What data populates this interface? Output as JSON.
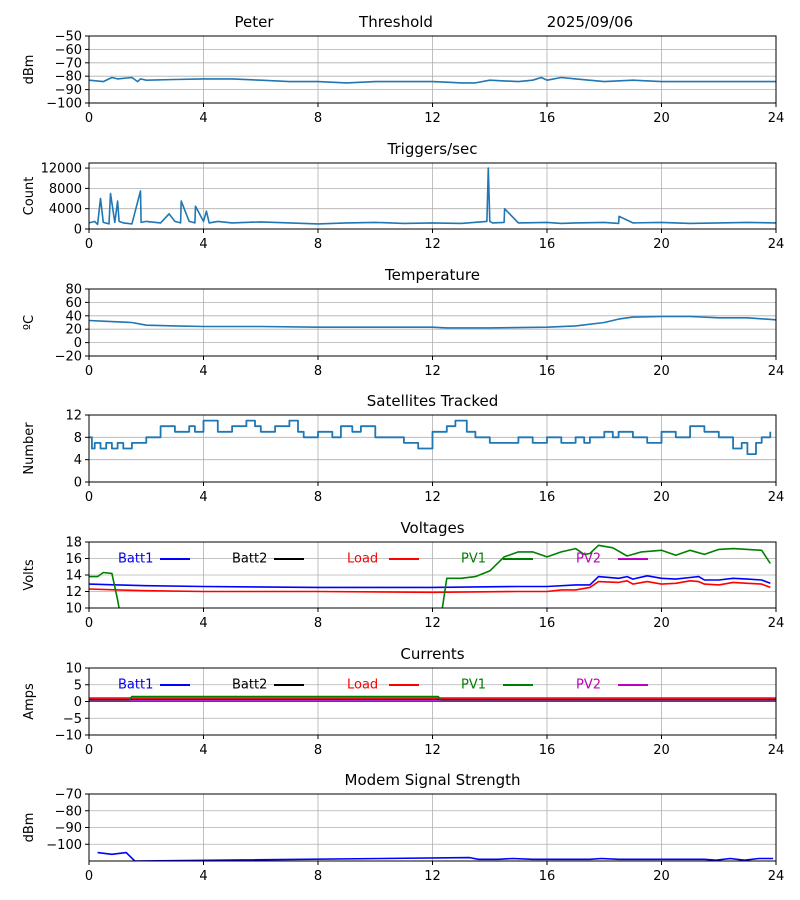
{
  "header": {
    "station": "Peter",
    "mode": "Threshold",
    "date": "2025/09/06"
  },
  "chart_data": [
    {
      "type": "line",
      "title": "",
      "xlabel": "",
      "ylabel": "dBm",
      "xlim": [
        0,
        24
      ],
      "ylim": [
        -100,
        -50
      ],
      "xticks": [
        0,
        4,
        8,
        12,
        16,
        20,
        24
      ],
      "yticks": [
        -100,
        -90,
        -80,
        -70,
        -60,
        -50
      ],
      "grid": true,
      "series": [
        {
          "color": "#1f77b4",
          "x": [
            0,
            0.5,
            0.8,
            1.0,
            1.5,
            1.7,
            1.8,
            2,
            3,
            4,
            5,
            6,
            7,
            8,
            9,
            10,
            11,
            12,
            12.5,
            13,
            13.5,
            14,
            15,
            15.5,
            15.8,
            16,
            16.5,
            17,
            18,
            19,
            20,
            21,
            22,
            23,
            24
          ],
          "values": [
            -83,
            -84,
            -81,
            -82,
            -81,
            -84,
            -82,
            -83,
            -82.5,
            -82,
            -82,
            -83,
            -84,
            -84,
            -85,
            -84,
            -84,
            -84,
            -84.5,
            -85,
            -85,
            -83,
            -84,
            -83,
            -81,
            -83,
            -81,
            -82,
            -84,
            -83,
            -84,
            -84,
            -84,
            -84,
            -84
          ]
        }
      ]
    },
    {
      "type": "line",
      "title": "Triggers/sec",
      "xlabel": "",
      "ylabel": "Count",
      "xlim": [
        0,
        24
      ],
      "ylim": [
        0,
        13000
      ],
      "xticks": [
        0,
        4,
        8,
        12,
        16,
        20,
        24
      ],
      "yticks": [
        0,
        4000,
        8000,
        12000
      ],
      "grid": true,
      "series": [
        {
          "color": "#1f77b4",
          "x": [
            0,
            0.2,
            0.3,
            0.4,
            0.5,
            0.7,
            0.75,
            0.9,
            1.0,
            1.05,
            1.2,
            1.5,
            1.8,
            1.82,
            2,
            2.5,
            2.8,
            3.0,
            3.2,
            3.22,
            3.5,
            3.7,
            3.72,
            4,
            4.1,
            4.2,
            4.5,
            5,
            6,
            7,
            8,
            9,
            10,
            11,
            12,
            13,
            13.9,
            13.95,
            14.0,
            14.1,
            14.5,
            14.52,
            15,
            16,
            16.5,
            17,
            18,
            18.5,
            18.52,
            19,
            20,
            21,
            22,
            23,
            24
          ],
          "values": [
            1200,
            1500,
            900,
            6000,
            1300,
            1000,
            7000,
            1300,
            5500,
            1500,
            1200,
            1000,
            7500,
            1300,
            1500,
            1200,
            3000,
            1500,
            1200,
            5500,
            1500,
            1200,
            4500,
            1500,
            3500,
            1200,
            1500,
            1200,
            1400,
            1200,
            1000,
            1200,
            1300,
            1100,
            1200,
            1100,
            1500,
            12000,
            1500,
            1200,
            1300,
            4000,
            1200,
            1300,
            1100,
            1200,
            1300,
            1100,
            2500,
            1200,
            1300,
            1100,
            1200,
            1300,
            1200
          ]
        }
      ]
    },
    {
      "type": "line",
      "title": "Temperature",
      "xlabel": "",
      "ylabel": "ºC",
      "xlim": [
        0,
        24
      ],
      "ylim": [
        -20,
        80
      ],
      "xticks": [
        0,
        4,
        8,
        12,
        16,
        20,
        24
      ],
      "yticks": [
        -20,
        0,
        20,
        40,
        60,
        80
      ],
      "grid": true,
      "series": [
        {
          "color": "#1f77b4",
          "x": [
            0,
            0.5,
            1.5,
            2,
            3,
            4,
            6,
            8,
            10,
            12,
            12.5,
            14,
            16,
            17,
            18,
            18.5,
            19,
            20,
            21,
            22,
            23,
            24
          ],
          "values": [
            33,
            32,
            30,
            26,
            25,
            24,
            24,
            23,
            23,
            23,
            22,
            22,
            23,
            25,
            30,
            35,
            38,
            39,
            39,
            37,
            37,
            34
          ]
        }
      ]
    },
    {
      "type": "line",
      "title": "Satellites Tracked",
      "xlabel": "",
      "ylabel": "Number",
      "xlim": [
        0,
        24
      ],
      "ylim": [
        0,
        12
      ],
      "xticks": [
        0,
        4,
        8,
        12,
        16,
        20,
        24
      ],
      "yticks": [
        0,
        4,
        8,
        12
      ],
      "grid": true,
      "step": true,
      "series": [
        {
          "color": "#1f77b4",
          "x": [
            0,
            0.1,
            0.2,
            0.4,
            0.6,
            0.8,
            1.0,
            1.2,
            1.5,
            2.0,
            2.5,
            3.0,
            3.5,
            3.7,
            4.0,
            4.5,
            5.0,
            5.5,
            5.8,
            6.0,
            6.5,
            7.0,
            7.3,
            7.5,
            8.0,
            8.5,
            8.8,
            9.2,
            9.5,
            10.0,
            11.0,
            11.5,
            12.0,
            12.5,
            12.8,
            13.2,
            13.5,
            14.0,
            15.0,
            15.5,
            16.0,
            16.5,
            17.0,
            17.3,
            17.5,
            18.0,
            18.3,
            18.5,
            19.0,
            19.5,
            20.0,
            20.5,
            21.0,
            21.5,
            22.0,
            22.5,
            22.8,
            23.0,
            23.3,
            23.5,
            23.8
          ],
          "values": [
            8,
            6,
            7,
            6,
            7,
            6,
            7,
            6,
            7,
            8,
            10,
            9,
            10,
            9,
            11,
            9,
            10,
            11,
            10,
            9,
            10,
            11,
            9,
            8,
            9,
            8,
            10,
            9,
            10,
            8,
            7,
            6,
            9,
            10,
            11,
            9,
            8,
            7,
            8,
            7,
            8,
            7,
            8,
            7,
            8,
            9,
            8,
            9,
            8,
            7,
            9,
            8,
            10,
            9,
            8,
            6,
            7,
            5,
            7,
            8,
            9
          ]
        }
      ]
    },
    {
      "type": "line",
      "title": "Voltages",
      "xlabel": "",
      "ylabel": "Volts",
      "xlim": [
        0,
        24
      ],
      "ylim": [
        10,
        18
      ],
      "xticks": [
        0,
        4,
        8,
        12,
        16,
        20,
        24
      ],
      "yticks": [
        10,
        12,
        14,
        16,
        18
      ],
      "grid": true,
      "legend": "top, inside, single row",
      "series": [
        {
          "name": "Batt1",
          "color": "#0000ff",
          "x": [
            0,
            1,
            2,
            4,
            8,
            12,
            15,
            16,
            17,
            17.5,
            17.8,
            18.5,
            18.8,
            19,
            19.5,
            20,
            20.5,
            21,
            21.3,
            21.5,
            22,
            22.5,
            23,
            23.5,
            23.8
          ],
          "values": [
            12.9,
            12.8,
            12.7,
            12.6,
            12.5,
            12.5,
            12.6,
            12.6,
            12.8,
            12.8,
            13.8,
            13.6,
            13.8,
            13.5,
            13.9,
            13.6,
            13.5,
            13.7,
            13.8,
            13.4,
            13.4,
            13.6,
            13.5,
            13.4,
            13.0
          ]
        },
        {
          "name": "Batt2",
          "color": "#000000",
          "x": [],
          "values": []
        },
        {
          "name": "Load",
          "color": "#ff0000",
          "x": [
            0,
            1,
            2,
            4,
            8,
            12,
            15,
            16,
            16.5,
            17,
            17.5,
            17.8,
            18.5,
            18.8,
            19,
            19.5,
            20,
            20.5,
            21,
            21.3,
            21.5,
            22,
            22.5,
            23,
            23.5,
            23.8
          ],
          "values": [
            12.3,
            12.2,
            12.1,
            12.0,
            12.0,
            11.9,
            12.0,
            12.0,
            12.2,
            12.2,
            12.5,
            13.2,
            13.1,
            13.3,
            12.9,
            13.2,
            12.9,
            13.0,
            13.3,
            13.2,
            12.9,
            12.8,
            13.1,
            13.0,
            12.9,
            12.5
          ]
        },
        {
          "name": "PV1",
          "color": "#008000",
          "x": [
            0,
            0.3,
            0.5,
            0.8,
            1.0,
            1.1,
            12.3,
            12.5,
            13.0,
            13.5,
            14.0,
            14.5,
            15.0,
            15.5,
            16.0,
            16.5,
            17.0,
            17.3,
            17.5,
            17.8,
            18.3,
            18.8,
            19.3,
            20.0,
            20.5,
            21.0,
            21.5,
            22.0,
            22.5,
            23.0,
            23.5,
            23.8
          ],
          "values": [
            13.8,
            13.8,
            14.3,
            14.2,
            11.0,
            9.0,
            9.0,
            13.6,
            13.6,
            13.8,
            14.5,
            16.2,
            16.8,
            16.8,
            16.2,
            16.8,
            17.2,
            16.5,
            16.6,
            17.6,
            17.3,
            16.3,
            16.8,
            17.0,
            16.4,
            17.0,
            16.5,
            17.1,
            17.2,
            17.1,
            17.0,
            15.4
          ]
        },
        {
          "name": "PV2",
          "color": "#bf00bf",
          "x": [],
          "values": []
        }
      ]
    },
    {
      "type": "line",
      "title": "Currents",
      "xlabel": "",
      "ylabel": "Amps",
      "xlim": [
        0,
        24
      ],
      "ylim": [
        -10,
        10
      ],
      "xticks": [
        0,
        4,
        8,
        12,
        16,
        20,
        24
      ],
      "yticks": [
        -10,
        -5,
        0,
        5,
        10
      ],
      "grid": true,
      "legend": "top, inside, single row",
      "series": [
        {
          "name": "Batt1",
          "color": "#0000ff",
          "x": [
            0,
            24
          ],
          "values": [
            0.6,
            0.6
          ]
        },
        {
          "name": "Batt2",
          "color": "#000000",
          "x": [],
          "values": []
        },
        {
          "name": "Load",
          "color": "#ff0000",
          "x": [
            0,
            4,
            8,
            12,
            16,
            20,
            24
          ],
          "values": [
            1.0,
            1.0,
            1.0,
            1.0,
            1.0,
            1.0,
            1.0
          ]
        },
        {
          "name": "PV1",
          "color": "#008000",
          "x": [
            0,
            1.4,
            1.5,
            4,
            8,
            12.2,
            12.3,
            24
          ],
          "values": [
            0.3,
            0.3,
            1.5,
            1.5,
            1.5,
            1.5,
            0.3,
            0.3
          ]
        },
        {
          "name": "PV2",
          "color": "#bf00bf",
          "x": [
            0,
            24
          ],
          "values": [
            0.1,
            0.1
          ]
        }
      ]
    },
    {
      "type": "line",
      "title": "Modem Signal Strength",
      "xlabel": "",
      "ylabel": "dBm",
      "xlim": [
        0,
        24
      ],
      "ylim": [
        -110,
        -70
      ],
      "xticks": [
        0,
        4,
        8,
        12,
        16,
        20,
        24
      ],
      "yticks": [
        -100,
        -90,
        -80,
        -70
      ],
      "grid": true,
      "series": [
        {
          "color": "#0000ff",
          "x": [
            0.3,
            0.8,
            1.3,
            1.6,
            13.3,
            13.6,
            14.3,
            14.8,
            15.5,
            16.5,
            17.5,
            17.9,
            18.5,
            19.5,
            20.5,
            21.5,
            21.9,
            22.4,
            22.9,
            23.4,
            23.9
          ],
          "values": [
            -105,
            -106,
            -105,
            -110,
            -108,
            -109,
            -109,
            -108.5,
            -109,
            -109,
            -109,
            -108.5,
            -109,
            -109,
            -109,
            -109,
            -109.5,
            -108.5,
            -109.5,
            -108.5,
            -108.5
          ]
        }
      ]
    }
  ]
}
